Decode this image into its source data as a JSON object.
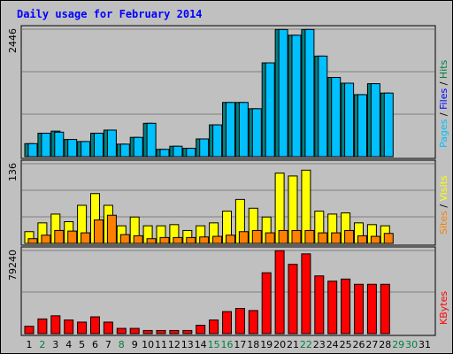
{
  "chart_data": {
    "type": "bar",
    "title": "Daily usage for February 2014",
    "days": [
      "1",
      "2",
      "3",
      "4",
      "5",
      "6",
      "7",
      "8",
      "9",
      "10",
      "11",
      "12",
      "13",
      "14",
      "15",
      "16",
      "17",
      "18",
      "19",
      "20",
      "21",
      "22",
      "23",
      "24",
      "25",
      "26",
      "27",
      "28",
      "29",
      "30",
      "31"
    ],
    "weekend_days": [
      2,
      8,
      15,
      16,
      22,
      29,
      30
    ],
    "panels": [
      {
        "id": "hits",
        "ymax": 2446,
        "ymax_label": "2446",
        "legend": [
          {
            "text": "Pages",
            "color": "#00c0ff"
          },
          {
            "text": " / ",
            "color": "#000000"
          },
          {
            "text": "Files",
            "color": "#0000ff"
          },
          {
            "text": " / ",
            "color": "#000000"
          },
          {
            "text": "Hits",
            "color": "#008040"
          }
        ],
        "series": [
          {
            "color": "#008080",
            "values": [
              250,
              450,
              490,
              330,
              290,
              450,
              510,
              240,
              370,
              640,
              140,
              200,
              160,
              340,
              610,
              1040,
              1040,
              920,
              1800,
              2440,
              2330,
              2440,
              1930,
              1520,
              1410,
              1190,
              1400,
              1220,
              0,
              0,
              0
            ]
          },
          {
            "color": "#00c0ff",
            "values": [
              250,
              450,
              470,
              330,
              290,
              450,
              510,
              240,
              370,
              640,
              140,
              200,
              160,
              340,
              610,
              1040,
              1040,
              920,
              1800,
              2440,
              2330,
              2440,
              1930,
              1520,
              1410,
              1190,
              1400,
              1220,
              0,
              0,
              0
            ]
          }
        ]
      },
      {
        "id": "sites",
        "ymax": 136,
        "ymax_label": "136",
        "legend": [
          {
            "text": "Sites",
            "color": "#ff8000"
          },
          {
            "text": " / ",
            "color": "#000000"
          },
          {
            "text": "Visits",
            "color": "#ffff00"
          }
        ],
        "series": [
          {
            "color": "#ffff00",
            "values": [
              20,
              35,
              50,
              37,
              65,
              85,
              65,
              30,
              45,
              30,
              30,
              32,
              22,
              30,
              35,
              55,
              75,
              60,
              45,
              120,
              115,
              125,
              55,
              50,
              52,
              35,
              32,
              30,
              0,
              0,
              0
            ]
          },
          {
            "color": "#ff8000",
            "values": [
              8,
              14,
              22,
              21,
              18,
              40,
              48,
              15,
              13,
              8,
              10,
              10,
              10,
              11,
              12,
              14,
              20,
              22,
              18,
              22,
              22,
              22,
              18,
              18,
              22,
              13,
              12,
              17,
              0,
              0,
              0
            ]
          }
        ]
      },
      {
        "id": "kbytes",
        "ymax": 79240,
        "ymax_label": "79240",
        "legend": [
          {
            "text": "KBytes",
            "color": "#ff0000"
          }
        ],
        "series": [
          {
            "color": "#ff0000",
            "values": [
              7000,
              14000,
              17000,
              13000,
              11000,
              16000,
              11000,
              5000,
              5000,
              3000,
              3000,
              3000,
              3000,
              8000,
              13000,
              21000,
              24000,
              22000,
              58000,
              79000,
              66000,
              76000,
              55000,
              50000,
              52000,
              47000,
              47000,
              47000,
              0,
              0,
              0
            ]
          }
        ]
      }
    ]
  }
}
